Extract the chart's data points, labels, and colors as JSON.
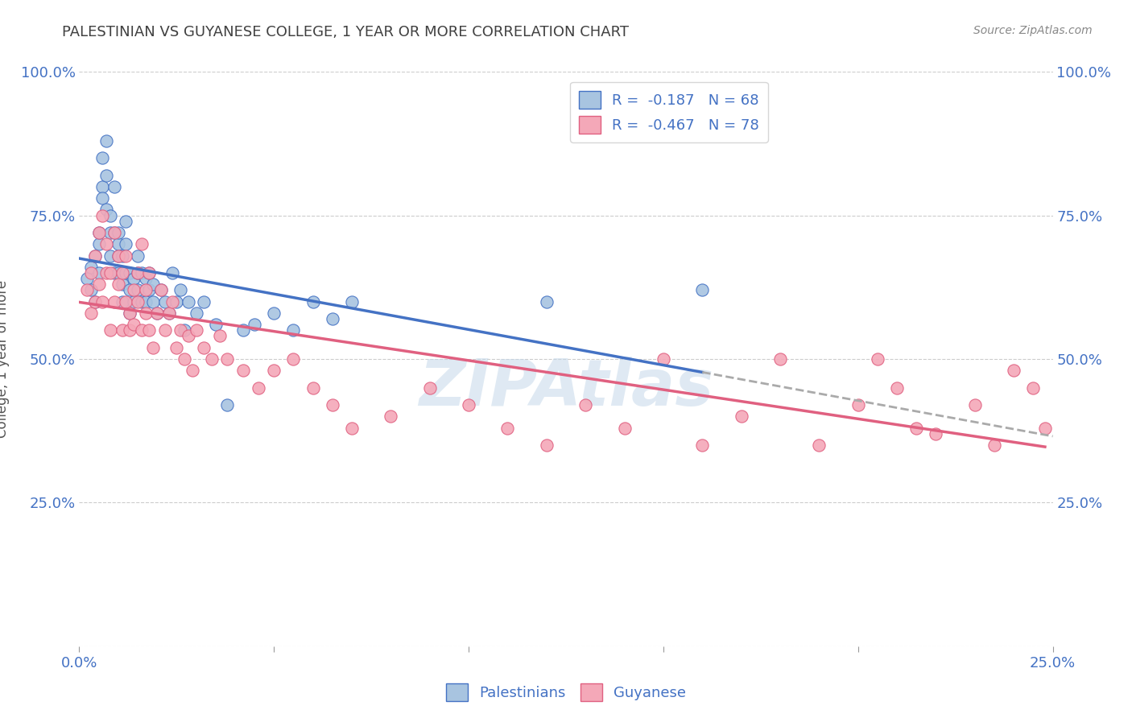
{
  "title": "PALESTINIAN VS GUYANESE COLLEGE, 1 YEAR OR MORE CORRELATION CHART",
  "source": "Source: ZipAtlas.com",
  "ylabel": "College, 1 year or more",
  "xlim": [
    0.0,
    0.25
  ],
  "ylim": [
    0.0,
    1.0
  ],
  "xtick_positions": [
    0.0,
    0.05,
    0.1,
    0.15,
    0.2,
    0.25
  ],
  "xtick_labels": [
    "0.0%",
    "",
    "",
    "",
    "",
    "25.0%"
  ],
  "ytick_positions": [
    0.0,
    0.25,
    0.5,
    0.75,
    1.0
  ],
  "ytick_labels": [
    "",
    "25.0%",
    "50.0%",
    "75.0%",
    "100.0%"
  ],
  "color_palestinians": "#a8c4e0",
  "color_guyanese": "#f4a8b8",
  "color_trend_palestinians": "#4472c4",
  "color_trend_guyanese": "#e06080",
  "color_axis_text": "#4472c4",
  "watermark": "ZIPAtlas",
  "palestinians_x": [
    0.002,
    0.003,
    0.003,
    0.004,
    0.004,
    0.005,
    0.005,
    0.005,
    0.006,
    0.006,
    0.006,
    0.007,
    0.007,
    0.007,
    0.008,
    0.008,
    0.008,
    0.009,
    0.009,
    0.009,
    0.01,
    0.01,
    0.01,
    0.01,
    0.011,
    0.011,
    0.011,
    0.012,
    0.012,
    0.012,
    0.013,
    0.013,
    0.013,
    0.014,
    0.014,
    0.015,
    0.015,
    0.015,
    0.016,
    0.016,
    0.017,
    0.017,
    0.018,
    0.018,
    0.019,
    0.019,
    0.02,
    0.021,
    0.022,
    0.023,
    0.024,
    0.025,
    0.026,
    0.027,
    0.028,
    0.03,
    0.032,
    0.035,
    0.038,
    0.042,
    0.045,
    0.05,
    0.055,
    0.06,
    0.065,
    0.07,
    0.12,
    0.16
  ],
  "palestinians_y": [
    0.64,
    0.66,
    0.62,
    0.68,
    0.6,
    0.7,
    0.65,
    0.72,
    0.8,
    0.85,
    0.78,
    0.82,
    0.88,
    0.76,
    0.75,
    0.72,
    0.68,
    0.72,
    0.65,
    0.8,
    0.65,
    0.68,
    0.7,
    0.72,
    0.6,
    0.63,
    0.68,
    0.65,
    0.7,
    0.74,
    0.62,
    0.58,
    0.65,
    0.6,
    0.64,
    0.65,
    0.62,
    0.68,
    0.6,
    0.65,
    0.6,
    0.64,
    0.62,
    0.65,
    0.6,
    0.63,
    0.58,
    0.62,
    0.6,
    0.58,
    0.65,
    0.6,
    0.62,
    0.55,
    0.6,
    0.58,
    0.6,
    0.56,
    0.42,
    0.55,
    0.56,
    0.58,
    0.55,
    0.6,
    0.57,
    0.6,
    0.6,
    0.62
  ],
  "guyanese_x": [
    0.002,
    0.003,
    0.003,
    0.004,
    0.004,
    0.005,
    0.005,
    0.006,
    0.006,
    0.007,
    0.007,
    0.008,
    0.008,
    0.009,
    0.009,
    0.01,
    0.01,
    0.011,
    0.011,
    0.012,
    0.012,
    0.013,
    0.013,
    0.014,
    0.014,
    0.015,
    0.015,
    0.016,
    0.016,
    0.017,
    0.017,
    0.018,
    0.018,
    0.019,
    0.02,
    0.021,
    0.022,
    0.023,
    0.024,
    0.025,
    0.026,
    0.027,
    0.028,
    0.029,
    0.03,
    0.032,
    0.034,
    0.036,
    0.038,
    0.042,
    0.046,
    0.05,
    0.055,
    0.06,
    0.065,
    0.07,
    0.08,
    0.09,
    0.1,
    0.11,
    0.12,
    0.13,
    0.14,
    0.15,
    0.16,
    0.17,
    0.18,
    0.19,
    0.2,
    0.205,
    0.21,
    0.215,
    0.22,
    0.23,
    0.235,
    0.24,
    0.245,
    0.248
  ],
  "guyanese_y": [
    0.62,
    0.65,
    0.58,
    0.68,
    0.6,
    0.72,
    0.63,
    0.75,
    0.6,
    0.65,
    0.7,
    0.55,
    0.65,
    0.6,
    0.72,
    0.63,
    0.68,
    0.65,
    0.55,
    0.6,
    0.68,
    0.55,
    0.58,
    0.62,
    0.56,
    0.6,
    0.65,
    0.55,
    0.7,
    0.58,
    0.62,
    0.55,
    0.65,
    0.52,
    0.58,
    0.62,
    0.55,
    0.58,
    0.6,
    0.52,
    0.55,
    0.5,
    0.54,
    0.48,
    0.55,
    0.52,
    0.5,
    0.54,
    0.5,
    0.48,
    0.45,
    0.48,
    0.5,
    0.45,
    0.42,
    0.38,
    0.4,
    0.45,
    0.42,
    0.38,
    0.35,
    0.42,
    0.38,
    0.5,
    0.35,
    0.4,
    0.5,
    0.35,
    0.42,
    0.5,
    0.45,
    0.38,
    0.37,
    0.42,
    0.35,
    0.48,
    0.45,
    0.38
  ]
}
